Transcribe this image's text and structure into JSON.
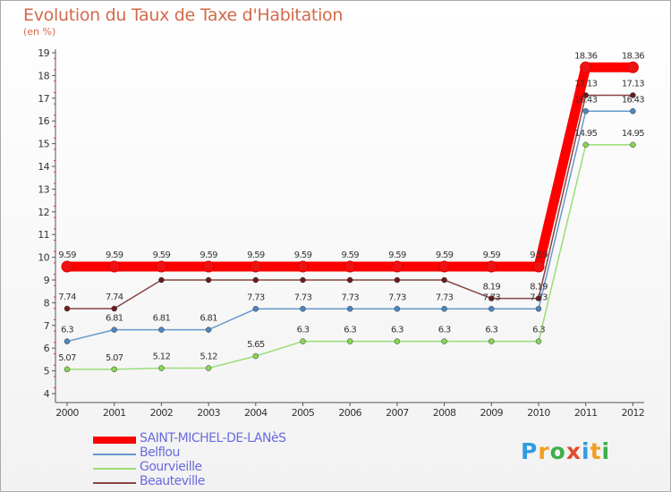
{
  "header": {
    "title": "Evolution du Taux de Taxe d'Habitation",
    "subtitle": "(en %)"
  },
  "logo": {
    "letters": [
      "P",
      "r",
      "o",
      "x",
      "i",
      "t",
      "i"
    ],
    "colors": [
      "#2f9de0",
      "#f0a020",
      "#3cb04a",
      "#e04c2c",
      "#2f9de0",
      "#f0a020",
      "#3cb04a"
    ]
  },
  "chart_data": {
    "type": "line",
    "title": "Evolution du Taux de Taxe d'Habitation",
    "ylabel": "(en %)",
    "xlabel": "",
    "categories": [
      "2000",
      "2001",
      "2002",
      "2003",
      "2004",
      "2005",
      "2006",
      "2007",
      "2008",
      "2009",
      "2010",
      "2011",
      "2012"
    ],
    "ylim": [
      4,
      19
    ],
    "yticks": [
      4,
      5,
      6,
      7,
      8,
      9,
      10,
      11,
      12,
      13,
      14,
      15,
      16,
      17,
      18,
      19
    ],
    "grid": false,
    "legend_position": "bottom-left",
    "series": [
      {
        "name": "SAINT-MICHEL-DE-LANèS",
        "color": "#ff0000",
        "marker": "#ee1111",
        "thick": true,
        "values": [
          9.59,
          9.59,
          9.59,
          9.59,
          9.59,
          9.59,
          9.59,
          9.59,
          9.59,
          9.59,
          9.59,
          18.36,
          18.36
        ],
        "labels": [
          "9.59",
          "9.59",
          "9.59",
          "9.59",
          "9.59",
          "9.59",
          "9.59",
          "9.59",
          "9.59",
          "9.59",
          "9.59",
          "18.36",
          "18.36"
        ]
      },
      {
        "name": "Belflou",
        "color": "#6699cc",
        "marker": "#4d86c2",
        "thick": false,
        "values": [
          6.3,
          6.81,
          6.81,
          6.81,
          7.73,
          7.73,
          7.73,
          7.73,
          7.73,
          7.73,
          7.73,
          16.43,
          16.43
        ],
        "labels": [
          "6.3",
          "6.81",
          "6.81",
          "6.81",
          "7.73",
          "7.73",
          "7.73",
          "7.73",
          "7.73",
          "7.73",
          "7.73",
          "16.43",
          "16.43"
        ]
      },
      {
        "name": "Gourvieille",
        "color": "#99dd77",
        "marker": "#88d455",
        "thick": false,
        "values": [
          5.07,
          5.07,
          5.12,
          5.12,
          5.65,
          6.3,
          6.3,
          6.3,
          6.3,
          6.3,
          6.3,
          14.95,
          14.95
        ],
        "labels": [
          "5.07",
          "5.07",
          "5.12",
          "5.12",
          "5.65",
          "6.3",
          "6.3",
          "6.3",
          "6.3",
          "6.3",
          "6.3",
          "14.95",
          "14.95"
        ]
      },
      {
        "name": "Beauteville",
        "color": "#884444",
        "marker": "#6b1c1c",
        "thick": false,
        "values": [
          7.74,
          7.74,
          9.0,
          9.0,
          9.0,
          9.0,
          9.0,
          9.0,
          9.0,
          8.19,
          8.19,
          17.13,
          17.13
        ],
        "labels": [
          "7.74",
          "7.74",
          "",
          "",
          "",
          "",
          "",
          "",
          "",
          "8.19",
          "8.19",
          "17.13",
          "17.13"
        ]
      }
    ]
  }
}
